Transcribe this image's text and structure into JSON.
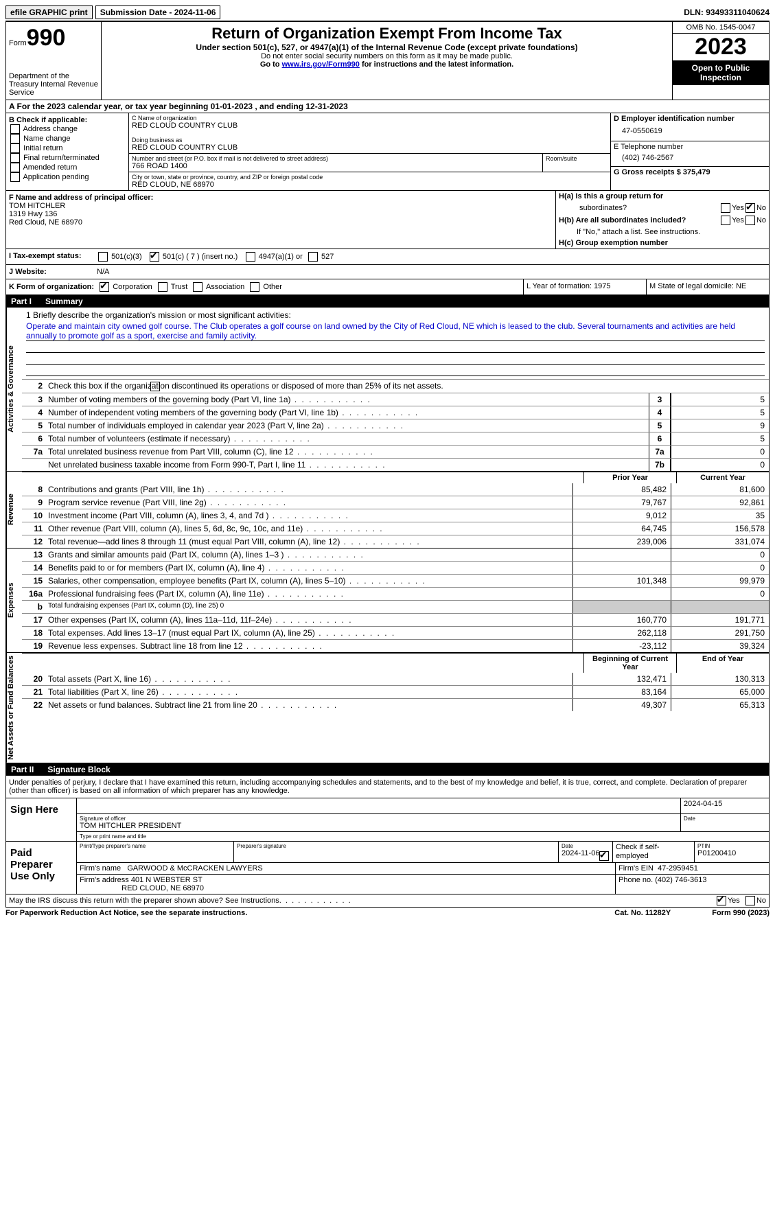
{
  "topbar": {
    "efile_label": "efile GRAPHIC print",
    "submission_label": "Submission Date - 2024-11-06",
    "dln_label": "DLN: 93493311040624"
  },
  "header": {
    "form_word": "Form",
    "form_number": "990",
    "dept": "Department of the Treasury\nInternal Revenue Service",
    "title": "Return of Organization Exempt From Income Tax",
    "subtitle": "Under section 501(c), 527, or 4947(a)(1) of the Internal Revenue Code (except private foundations)",
    "note1": "Do not enter social security numbers on this form as it may be made public.",
    "note2_pre": "Go to ",
    "note2_link": "www.irs.gov/Form990",
    "note2_post": " for instructions and the latest information.",
    "omb": "OMB No. 1545-0047",
    "year": "2023",
    "inspect": "Open to Public Inspection"
  },
  "row_a": "A   For the 2023 calendar year, or tax year beginning 01-01-2023    , and ending 12-31-2023",
  "col_b": {
    "heading": "B Check if applicable:",
    "items": [
      "Address change",
      "Name change",
      "Initial return",
      "Final return/terminated",
      "Amended return",
      "Application pending"
    ]
  },
  "col_c": {
    "name_label": "C Name of organization",
    "name": "RED CLOUD COUNTRY CLUB",
    "dba_label": "Doing business as",
    "dba": "RED CLOUD COUNTRY CLUB",
    "street_label": "Number and street (or P.O. box if mail is not delivered to street address)",
    "street": "766 ROAD 1400",
    "room_label": "Room/suite",
    "city_label": "City or town, state or province, country, and ZIP or foreign postal code",
    "city": "RED CLOUD, NE  68970"
  },
  "col_d": {
    "ein_label": "D Employer identification number",
    "ein": "47-0550619",
    "phone_label": "E Telephone number",
    "phone": "(402) 746-2567",
    "gross_label": "G Gross receipts $ 375,479"
  },
  "officer": {
    "label": "F  Name and address of principal officer:",
    "name": "TOM HITCHLER",
    "street": "1319 Hwy 136",
    "city": "Red Cloud, NE  68970"
  },
  "ha": {
    "a_label": "H(a)  Is this a group return for",
    "a_label2": "subordinates?",
    "b_label": "H(b)  Are all subordinates included?",
    "b_note": "If \"No,\" attach a list. See instructions.",
    "c_label": "H(c)  Group exemption number  ",
    "yes": "Yes",
    "no": "No"
  },
  "tax_status": {
    "label": "I   Tax-exempt status:",
    "opt1": "501(c)(3)",
    "opt2": "501(c) ( 7 ) (insert no.)",
    "opt3": "4947(a)(1) or",
    "opt4": "527"
  },
  "website": {
    "label": "J   Website:",
    "value": "N/A"
  },
  "k_row": {
    "label": "K Form of organization:",
    "opts": [
      "Corporation",
      "Trust",
      "Association",
      "Other"
    ],
    "l_label": "L Year of formation: 1975",
    "m_label": "M State of legal domicile: NE"
  },
  "part1": {
    "num": "Part I",
    "title": "Summary"
  },
  "part2": {
    "num": "Part II",
    "title": "Signature Block"
  },
  "mission": {
    "line1_label": "1   Briefly describe the organization's mission or most significant activities:",
    "text": "Operate and maintain city owned golf course. The Club operates a golf course on land owned by the City of Red Cloud, NE which is leased to the club. Several tournaments and activities are held annually to promote golf as a sport, exercise and family activity."
  },
  "summary_lines": {
    "l2": "Check this box          if the organization discontinued its operations or disposed of more than 25% of its net assets.",
    "l3": "Number of voting members of the governing body (Part VI, line 1a)",
    "l4": "Number of independent voting members of the governing body (Part VI, line 1b)",
    "l5": "Total number of individuals employed in calendar year 2023 (Part V, line 2a)",
    "l6": "Total number of volunteers (estimate if necessary)",
    "l7a": "Total unrelated business revenue from Part VIII, column (C), line 12",
    "l7b": "Net unrelated business taxable income from Form 990-T, Part I, line 11"
  },
  "summary_vals": {
    "v3": "5",
    "v4": "5",
    "v5": "9",
    "v6": "5",
    "v7a": "0",
    "v7b": "0"
  },
  "col_headers": {
    "prior": "Prior Year",
    "current": "Current Year",
    "begin": "Beginning of Current Year",
    "end": "End of Year"
  },
  "revenue": [
    {
      "n": "8",
      "d": "Contributions and grants (Part VIII, line 1h)",
      "p": "85,482",
      "c": "81,600"
    },
    {
      "n": "9",
      "d": "Program service revenue (Part VIII, line 2g)",
      "p": "79,767",
      "c": "92,861"
    },
    {
      "n": "10",
      "d": "Investment income (Part VIII, column (A), lines 3, 4, and 7d )",
      "p": "9,012",
      "c": "35"
    },
    {
      "n": "11",
      "d": "Other revenue (Part VIII, column (A), lines 5, 6d, 8c, 9c, 10c, and 11e)",
      "p": "64,745",
      "c": "156,578"
    },
    {
      "n": "12",
      "d": "Total revenue—add lines 8 through 11 (must equal Part VIII, column (A), line 12)",
      "p": "239,006",
      "c": "331,074"
    }
  ],
  "expenses": [
    {
      "n": "13",
      "d": "Grants and similar amounts paid (Part IX, column (A), lines 1–3 )",
      "p": "",
      "c": "0"
    },
    {
      "n": "14",
      "d": "Benefits paid to or for members (Part IX, column (A), line 4)",
      "p": "",
      "c": "0"
    },
    {
      "n": "15",
      "d": "Salaries, other compensation, employee benefits (Part IX, column (A), lines 5–10)",
      "p": "101,348",
      "c": "99,979"
    },
    {
      "n": "16a",
      "d": "Professional fundraising fees (Part IX, column (A), line 11e)",
      "p": "",
      "c": "0"
    },
    {
      "n": "b",
      "d": "Total fundraising expenses (Part IX, column (D), line 25) 0",
      "p": "grey",
      "c": "grey"
    },
    {
      "n": "17",
      "d": "Other expenses (Part IX, column (A), lines 11a–11d, 11f–24e)",
      "p": "160,770",
      "c": "191,771"
    },
    {
      "n": "18",
      "d": "Total expenses. Add lines 13–17 (must equal Part IX, column (A), line 25)",
      "p": "262,118",
      "c": "291,750"
    },
    {
      "n": "19",
      "d": "Revenue less expenses. Subtract line 18 from line 12",
      "p": "-23,112",
      "c": "39,324"
    }
  ],
  "netassets": [
    {
      "n": "20",
      "d": "Total assets (Part X, line 16)",
      "p": "132,471",
      "c": "130,313"
    },
    {
      "n": "21",
      "d": "Total liabilities (Part X, line 26)",
      "p": "83,164",
      "c": "65,000"
    },
    {
      "n": "22",
      "d": "Net assets or fund balances. Subtract line 21 from line 20",
      "p": "49,307",
      "c": "65,313"
    }
  ],
  "vtabs": {
    "gov": "Activities & Governance",
    "rev": "Revenue",
    "exp": "Expenses",
    "net": "Net Assets or\nFund Balances"
  },
  "sig_statement": "Under penalties of perjury, I declare that I have examined this return, including accompanying schedules and statements, and to the best of my knowledge and belief, it is true, correct, and complete. Declaration of preparer (other than officer) is based on all information of which preparer has any knowledge.",
  "sign_here": {
    "label": "Sign Here",
    "sig_officer_label": "Signature of officer",
    "officer": "TOM HITCHLER  PRESIDENT",
    "type_label": "Type or print name and title",
    "date_label": "Date",
    "date": "2024-04-15"
  },
  "paid_prep": {
    "label": "Paid Preparer Use Only",
    "print_label": "Print/Type preparer's name",
    "sig_label": "Preparer's signature",
    "date_label": "Date",
    "date": "2024-11-06",
    "check_label": "Check         if self-employed",
    "ptin_label": "PTIN",
    "ptin": "P01200410",
    "firm_name_label": "Firm's name",
    "firm_name": "GARWOOD & McCRACKEN LAWYERS",
    "firm_ein_label": "Firm's EIN",
    "firm_ein": "47-2959451",
    "firm_addr_label": "Firm's address",
    "firm_addr1": "401 N WEBSTER ST",
    "firm_addr2": "RED CLOUD, NE  68970",
    "phone_label": "Phone no.",
    "phone": "(402) 746-3613"
  },
  "footer": {
    "discuss": "May the IRS discuss this return with the preparer shown above? See Instructions.",
    "yes": "Yes",
    "no": "No",
    "paperwork": "For Paperwork Reduction Act Notice, see the separate instructions.",
    "catno": "Cat. No. 11282Y",
    "formref": "Form 990 (2023)"
  }
}
